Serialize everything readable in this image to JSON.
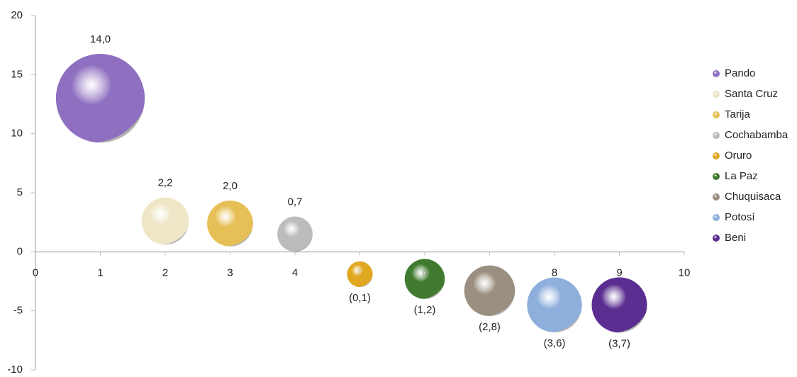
{
  "chart_data": {
    "type": "bubble",
    "xlim": [
      0,
      10
    ],
    "xticks": [
      0,
      1,
      2,
      3,
      4,
      5,
      6,
      7,
      8,
      9,
      10
    ],
    "ylim": [
      -10,
      20
    ],
    "yticks": [
      -10,
      -5,
      0,
      5,
      10,
      15,
      20
    ],
    "legend": "right",
    "series": [
      {
        "name": "Pando",
        "color": "#8e6fc0",
        "x": [
          1
        ],
        "values": [
          13
        ],
        "sizes": [
          14
        ],
        "value_labels": [
          "14,0"
        ]
      },
      {
        "name": "Santa Cruz",
        "color": "#eee6c6",
        "x": [
          2
        ],
        "values": [
          2.6
        ],
        "sizes": [
          2.2
        ],
        "value_labels": [
          "2,2"
        ]
      },
      {
        "name": "Tarija",
        "color": "#e6c057",
        "x": [
          3
        ],
        "values": [
          2.4
        ],
        "sizes": [
          2
        ],
        "value_labels": [
          "2,0"
        ]
      },
      {
        "name": "Cochabamba",
        "color": "#bcbcbc",
        "x": [
          4
        ],
        "values": [
          1.5
        ],
        "sizes": [
          0.7
        ],
        "value_labels": [
          "0,7"
        ]
      },
      {
        "name": "Oruro",
        "color": "#e0a820",
        "x": [
          5
        ],
        "values": [
          -1.9
        ],
        "sizes": [
          -0.1
        ],
        "value_labels": [
          "(0,1)"
        ]
      },
      {
        "name": "La Paz",
        "color": "#3f7a2e",
        "x": [
          6
        ],
        "values": [
          -2.3
        ],
        "sizes": [
          -1.2
        ],
        "value_labels": [
          "(1,2)"
        ]
      },
      {
        "name": "Chuquisaca",
        "color": "#9a8f80",
        "x": [
          7
        ],
        "values": [
          -3.3
        ],
        "sizes": [
          -2.8
        ],
        "value_labels": [
          "(2,8)"
        ]
      },
      {
        "name": "Potosí",
        "color": "#8eaedc",
        "x": [
          8
        ],
        "values": [
          -4.5
        ],
        "sizes": [
          -3.6
        ],
        "value_labels": [
          "(3,6)"
        ]
      },
      {
        "name": "Beni",
        "color": "#5a2e90",
        "x": [
          9
        ],
        "values": [
          -4.5
        ],
        "sizes": [
          -3.7
        ],
        "value_labels": [
          "(3,7)"
        ]
      }
    ]
  }
}
